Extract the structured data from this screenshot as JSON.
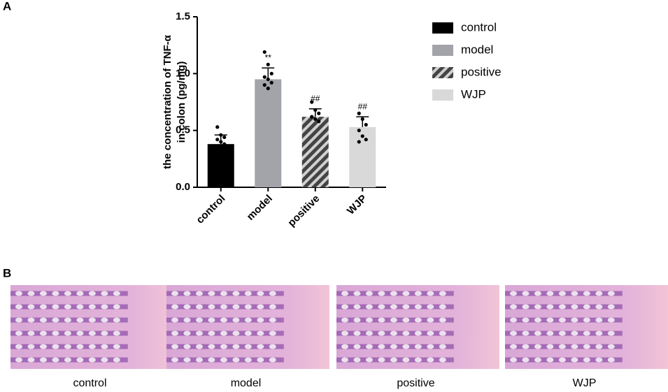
{
  "chart_data": {
    "type": "bar",
    "panel_label": "A",
    "y_label": [
      "the concentration of TNF-α",
      "in colon (pg/mg)"
    ],
    "categories": [
      "control",
      "model",
      "positive",
      "WJP"
    ],
    "values": [
      0.38,
      0.95,
      0.62,
      0.53
    ],
    "errors": [
      0.08,
      0.1,
      0.07,
      0.09
    ],
    "points": [
      [
        0.53,
        0.46,
        0.44,
        0.42,
        0.4,
        0.38
      ],
      [
        1.19,
        1.08,
        1.0,
        0.97,
        0.95,
        0.92,
        0.9,
        0.87
      ],
      [
        0.75,
        0.68,
        0.65,
        0.62,
        0.6,
        0.58
      ],
      [
        0.65,
        0.6,
        0.55,
        0.5,
        0.45,
        0.42,
        0.4
      ]
    ],
    "annotations": [
      null,
      "**",
      "##",
      "##"
    ],
    "colors": [
      "#000000",
      "#a3a3aa",
      "#505050",
      "#d9d9d9"
    ],
    "patterns": [
      null,
      null,
      "hatch",
      null
    ],
    "ylim": [
      0,
      1.5
    ],
    "yticks": [
      {
        "value": 0,
        "label": "0.0"
      },
      0.5,
      {
        "value": 1,
        "label": "1.0"
      },
      1.5
    ],
    "legend": true
  },
  "panel_b": {
    "label": "B",
    "images": [
      "control",
      "model",
      "positive",
      "WJP"
    ]
  }
}
